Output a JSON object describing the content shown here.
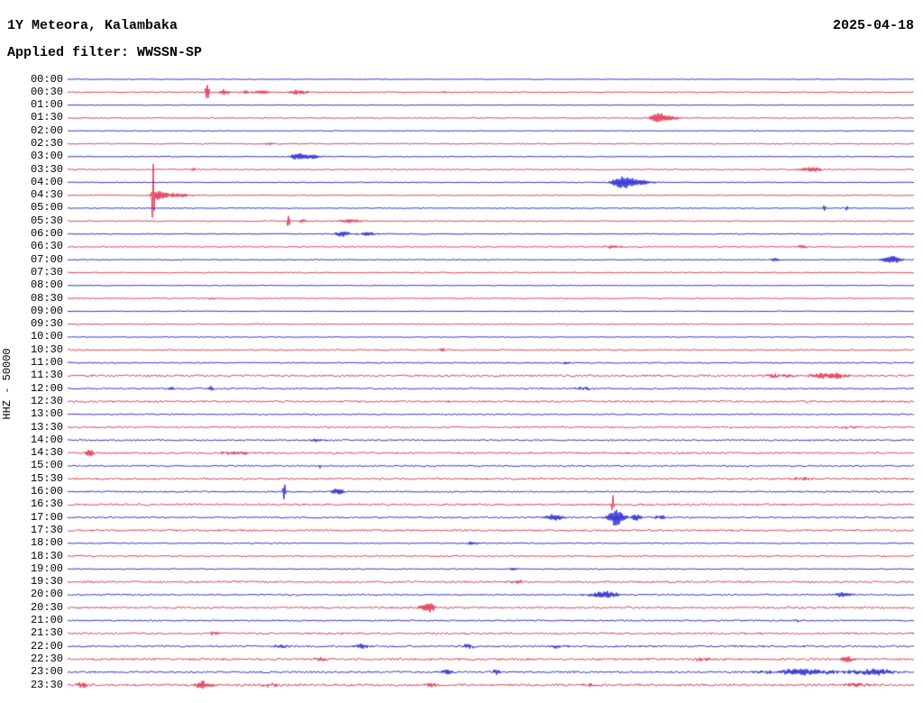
{
  "header": {
    "station": "1Y Meteora, Kalambaka",
    "date": "2025-04-18",
    "filter_label": "Applied filter: WWSSN-SP"
  },
  "axis": {
    "scale_label": "HHZ - 50000"
  },
  "palette": {
    "blue": "#0000cd",
    "red": "#dd1133",
    "background": "#ffffff",
    "text": "#000000"
  },
  "chart_data": {
    "type": "line",
    "title": "Helicorder day plot, 30-minute traces, alternating colors",
    "x_range_per_row_minutes": 30,
    "event_format": "[x_fraction_of_row, amplitude_px, width_fraction_of_row]",
    "rows": [
      {
        "time": "00:00",
        "color": "blue",
        "noise": 0.4,
        "events": []
      },
      {
        "time": "00:30",
        "color": "red",
        "noise": 0.55,
        "events": [
          [
            0.165,
            14,
            0.002
          ],
          [
            0.185,
            3,
            0.006
          ],
          [
            0.21,
            2.5,
            0.005
          ],
          [
            0.23,
            2,
            0.01
          ],
          [
            0.272,
            2.5,
            0.012
          ],
          [
            0.445,
            1.5,
            0.004
          ]
        ]
      },
      {
        "time": "01:00",
        "color": "blue",
        "noise": 0.4,
        "events": []
      },
      {
        "time": "01:30",
        "color": "red",
        "noise": 0.55,
        "events": [
          [
            0.697,
            5,
            0.009
          ],
          [
            0.712,
            2.5,
            0.012
          ]
        ]
      },
      {
        "time": "02:00",
        "color": "blue",
        "noise": 0.4,
        "events": []
      },
      {
        "time": "02:30",
        "color": "red",
        "noise": 0.6,
        "events": [
          [
            0.24,
            1.2,
            0.01
          ]
        ]
      },
      {
        "time": "03:00",
        "color": "blue",
        "noise": 0.45,
        "events": [
          [
            0.272,
            3.5,
            0.01
          ],
          [
            0.29,
            2,
            0.012
          ]
        ]
      },
      {
        "time": "03:30",
        "color": "red",
        "noise": 0.6,
        "events": [
          [
            0.149,
            2,
            0.003
          ],
          [
            0.878,
            2.5,
            0.014
          ]
        ]
      },
      {
        "time": "04:00",
        "color": "blue",
        "noise": 0.45,
        "events": [
          [
            0.655,
            6,
            0.012
          ],
          [
            0.675,
            3,
            0.018
          ]
        ]
      },
      {
        "time": "04:30",
        "color": "red",
        "noise": 0.6,
        "events": [
          [
            0.101,
            48,
            0.0012
          ],
          [
            0.108,
            5,
            0.006
          ],
          [
            0.125,
            2.5,
            0.02
          ]
        ]
      },
      {
        "time": "05:00",
        "color": "blue",
        "noise": 0.45,
        "events": [
          [
            0.894,
            4,
            0.0015
          ],
          [
            0.921,
            3,
            0.0015
          ]
        ]
      },
      {
        "time": "05:30",
        "color": "red",
        "noise": 0.6,
        "events": [
          [
            0.261,
            10,
            0.0015
          ],
          [
            0.278,
            2,
            0.006
          ],
          [
            0.335,
            2.2,
            0.014
          ]
        ]
      },
      {
        "time": "06:00",
        "color": "blue",
        "noise": 0.5,
        "events": [
          [
            0.325,
            3,
            0.009
          ],
          [
            0.355,
            1.8,
            0.012
          ]
        ]
      },
      {
        "time": "06:30",
        "color": "red",
        "noise": 0.65,
        "events": [
          [
            0.644,
            2,
            0.01
          ],
          [
            0.868,
            1.6,
            0.008
          ]
        ]
      },
      {
        "time": "07:00",
        "color": "blue",
        "noise": 0.5,
        "events": [
          [
            0.836,
            1.6,
            0.006
          ],
          [
            0.974,
            4,
            0.012
          ]
        ]
      },
      {
        "time": "07:30",
        "color": "red",
        "noise": 0.6,
        "events": []
      },
      {
        "time": "08:00",
        "color": "blue",
        "noise": 0.4,
        "events": []
      },
      {
        "time": "08:30",
        "color": "red",
        "noise": 0.55,
        "events": [
          [
            0.17,
            1.2,
            0.005
          ]
        ]
      },
      {
        "time": "09:00",
        "color": "blue",
        "noise": 0.4,
        "events": []
      },
      {
        "time": "09:30",
        "color": "red",
        "noise": 0.6,
        "events": []
      },
      {
        "time": "10:00",
        "color": "blue",
        "noise": 0.45,
        "events": []
      },
      {
        "time": "10:30",
        "color": "red",
        "noise": 0.7,
        "events": [
          [
            0.442,
            3,
            0.003
          ]
        ]
      },
      {
        "time": "11:00",
        "color": "blue",
        "noise": 0.7,
        "events": [
          [
            0.59,
            1.5,
            0.006
          ]
        ]
      },
      {
        "time": "11:30",
        "color": "red",
        "noise": 1.0,
        "events": [
          [
            0.84,
            1.8,
            0.02
          ],
          [
            0.9,
            3.5,
            0.022
          ]
        ]
      },
      {
        "time": "12:00",
        "color": "blue",
        "noise": 0.85,
        "events": [
          [
            0.122,
            2,
            0.004
          ],
          [
            0.17,
            2.5,
            0.004
          ],
          [
            0.61,
            1.5,
            0.01
          ]
        ]
      },
      {
        "time": "12:30",
        "color": "red",
        "noise": 1.0,
        "events": []
      },
      {
        "time": "13:00",
        "color": "blue",
        "noise": 0.7,
        "events": []
      },
      {
        "time": "13:30",
        "color": "red",
        "noise": 0.9,
        "events": [
          [
            0.92,
            1.5,
            0.01
          ]
        ]
      },
      {
        "time": "14:00",
        "color": "blue",
        "noise": 0.8,
        "events": [
          [
            0.293,
            1.6,
            0.01
          ]
        ]
      },
      {
        "time": "14:30",
        "color": "red",
        "noise": 1.0,
        "events": [
          [
            0.027,
            4,
            0.005
          ],
          [
            0.2,
            1.6,
            0.02
          ]
        ]
      },
      {
        "time": "15:00",
        "color": "blue",
        "noise": 0.8,
        "events": [
          [
            0.298,
            3,
            0.002
          ]
        ]
      },
      {
        "time": "15:30",
        "color": "red",
        "noise": 1.0,
        "events": [
          [
            0.868,
            1.6,
            0.012
          ]
        ]
      },
      {
        "time": "16:00",
        "color": "blue",
        "noise": 0.8,
        "events": [
          [
            0.256,
            10,
            0.0015
          ],
          [
            0.32,
            3.5,
            0.008
          ]
        ]
      },
      {
        "time": "16:30",
        "color": "red",
        "noise": 1.05,
        "events": [
          [
            0.644,
            12,
            0.0015
          ]
        ]
      },
      {
        "time": "17:00",
        "color": "blue",
        "noise": 0.85,
        "events": [
          [
            0.575,
            3,
            0.012
          ],
          [
            0.648,
            9,
            0.01
          ],
          [
            0.672,
            4,
            0.006
          ],
          [
            0.7,
            2,
            0.008
          ]
        ]
      },
      {
        "time": "17:30",
        "color": "red",
        "noise": 1.0,
        "events": []
      },
      {
        "time": "18:00",
        "color": "blue",
        "noise": 0.6,
        "events": [
          [
            0.479,
            2,
            0.006
          ]
        ]
      },
      {
        "time": "18:30",
        "color": "red",
        "noise": 0.85,
        "events": []
      },
      {
        "time": "19:00",
        "color": "blue",
        "noise": 0.6,
        "events": [
          [
            0.527,
            1.4,
            0.006
          ]
        ]
      },
      {
        "time": "19:30",
        "color": "red",
        "noise": 1.0,
        "events": [
          [
            0.532,
            2,
            0.008
          ]
        ]
      },
      {
        "time": "20:00",
        "color": "blue",
        "noise": 0.8,
        "events": [
          [
            0.634,
            4,
            0.016
          ],
          [
            0.916,
            2.5,
            0.012
          ]
        ]
      },
      {
        "time": "20:30",
        "color": "red",
        "noise": 1.05,
        "events": [
          [
            0.426,
            5.5,
            0.008
          ]
        ]
      },
      {
        "time": "21:00",
        "color": "blue",
        "noise": 0.8,
        "events": [
          [
            0.865,
            1.5,
            0.008
          ]
        ]
      },
      {
        "time": "21:30",
        "color": "red",
        "noise": 1.0,
        "events": [
          [
            0.17,
            1.5,
            0.008
          ]
        ]
      },
      {
        "time": "22:00",
        "color": "blue",
        "noise": 1.0,
        "events": [
          [
            0.25,
            1.6,
            0.01
          ],
          [
            0.346,
            2.5,
            0.008
          ],
          [
            0.474,
            2.5,
            0.008
          ],
          [
            0.58,
            2,
            0.008
          ]
        ]
      },
      {
        "time": "22:30",
        "color": "red",
        "noise": 1.15,
        "events": [
          [
            0.3,
            1.6,
            0.01
          ],
          [
            0.75,
            1.6,
            0.01
          ],
          [
            0.921,
            2.5,
            0.01
          ]
        ]
      },
      {
        "time": "23:00",
        "color": "blue",
        "noise": 1.0,
        "events": [
          [
            0.447,
            3,
            0.006
          ],
          [
            0.506,
            2.5,
            0.006
          ],
          [
            0.87,
            3,
            0.045
          ],
          [
            0.955,
            3,
            0.025
          ]
        ]
      },
      {
        "time": "23:30",
        "color": "red",
        "noise": 1.2,
        "events": [
          [
            0.016,
            2.5,
            0.008
          ],
          [
            0.16,
            4,
            0.009
          ],
          [
            0.24,
            2,
            0.01
          ],
          [
            0.43,
            2,
            0.008
          ],
          [
            0.62,
            1.6,
            0.01
          ],
          [
            0.93,
            2,
            0.018
          ]
        ]
      }
    ]
  }
}
